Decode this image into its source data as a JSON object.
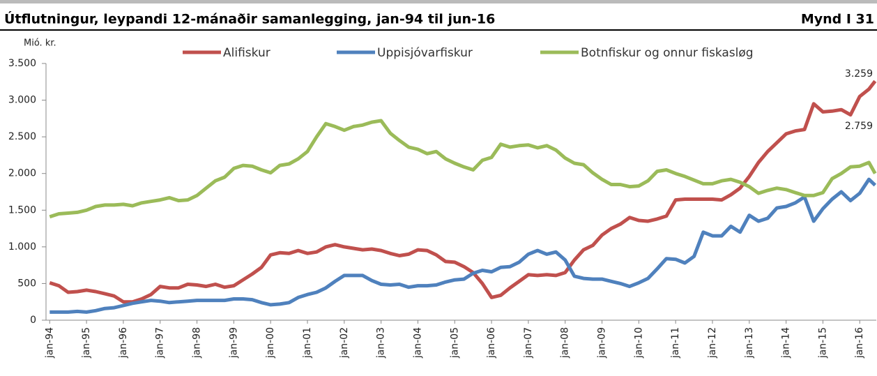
{
  "chart_data": {
    "type": "line",
    "title": "Útflutningur, leypandi 12-mánaðir samanlegging, jan-94 til jun-16",
    "figure_label": "Mynd I 31",
    "y_label": "Mió. kr.",
    "annotations": [
      "3.259",
      "2.759"
    ],
    "x": [
      1994,
      1994.25,
      1994.5,
      1994.75,
      1995,
      1995.25,
      1995.5,
      1995.75,
      1996,
      1996.25,
      1996.5,
      1996.75,
      1997,
      1997.25,
      1997.5,
      1997.75,
      1998,
      1998.25,
      1998.5,
      1998.75,
      1999,
      1999.25,
      1999.5,
      1999.75,
      2000,
      2000.25,
      2000.5,
      2000.75,
      2001,
      2001.25,
      2001.5,
      2001.75,
      2002,
      2002.25,
      2002.5,
      2002.75,
      2003,
      2003.25,
      2003.5,
      2003.75,
      2004,
      2004.25,
      2004.5,
      2004.75,
      2005,
      2005.25,
      2005.5,
      2005.75,
      2006,
      2006.25,
      2006.5,
      2006.75,
      2007,
      2007.25,
      2007.5,
      2007.75,
      2008,
      2008.25,
      2008.5,
      2008.75,
      2009,
      2009.25,
      2009.5,
      2009.75,
      2010,
      2010.25,
      2010.5,
      2010.75,
      2011,
      2011.25,
      2011.5,
      2011.75,
      2012,
      2012.25,
      2012.5,
      2012.75,
      2013,
      2013.25,
      2013.5,
      2013.75,
      2014,
      2014.25,
      2014.5,
      2014.75,
      2015,
      2015.25,
      2015.5,
      2015.75,
      2016,
      2016.25,
      2016.417
    ],
    "series": [
      {
        "name": "Alifiskur",
        "color": "#c0504d",
        "values": [
          510,
          470,
          380,
          390,
          410,
          390,
          360,
          330,
          250,
          250,
          290,
          350,
          460,
          440,
          440,
          490,
          480,
          460,
          490,
          450,
          470,
          550,
          630,
          720,
          890,
          920,
          910,
          950,
          910,
          930,
          1000,
          1030,
          1000,
          980,
          960,
          970,
          950,
          910,
          880,
          900,
          960,
          950,
          890,
          800,
          790,
          730,
          650,
          500,
          310,
          340,
          440,
          530,
          620,
          610,
          620,
          610,
          650,
          820,
          960,
          1020,
          1160,
          1250,
          1310,
          1400,
          1360,
          1350,
          1380,
          1420,
          1640,
          1650,
          1650,
          1650,
          1650,
          1640,
          1710,
          1800,
          1960,
          2150,
          2300,
          2420,
          2540,
          2580,
          2600,
          2950,
          2840,
          2850,
          2870,
          2800,
          3050,
          3150,
          3259
        ]
      },
      {
        "name": "Uppisjóvarfiskur",
        "color": "#4f81bd",
        "values": [
          110,
          110,
          110,
          120,
          110,
          130,
          160,
          170,
          200,
          230,
          250,
          270,
          260,
          240,
          250,
          260,
          270,
          270,
          270,
          270,
          290,
          290,
          280,
          240,
          210,
          220,
          240,
          310,
          350,
          380,
          440,
          530,
          610,
          610,
          610,
          540,
          490,
          480,
          490,
          450,
          470,
          470,
          480,
          520,
          550,
          560,
          640,
          680,
          660,
          720,
          730,
          790,
          900,
          950,
          900,
          930,
          820,
          600,
          570,
          560,
          560,
          530,
          500,
          460,
          510,
          570,
          700,
          840,
          830,
          780,
          870,
          1200,
          1150,
          1150,
          1280,
          1200,
          1430,
          1350,
          1390,
          1530,
          1550,
          1600,
          1680,
          1350,
          1520,
          1650,
          1750,
          1630,
          1730,
          1920,
          1840
        ]
      },
      {
        "name": "Botnfiskur og onnur fiskasløg",
        "color": "#9bbb59",
        "values": [
          1410,
          1450,
          1460,
          1470,
          1500,
          1550,
          1570,
          1570,
          1580,
          1560,
          1600,
          1620,
          1640,
          1670,
          1630,
          1640,
          1700,
          1800,
          1900,
          1950,
          2070,
          2110,
          2100,
          2050,
          2010,
          2110,
          2130,
          2200,
          2300,
          2500,
          2680,
          2640,
          2590,
          2640,
          2660,
          2700,
          2720,
          2550,
          2450,
          2360,
          2330,
          2270,
          2300,
          2200,
          2140,
          2090,
          2050,
          2180,
          2220,
          2400,
          2360,
          2380,
          2390,
          2350,
          2380,
          2320,
          2210,
          2140,
          2120,
          2010,
          1920,
          1850,
          1850,
          1820,
          1830,
          1900,
          2030,
          2050,
          2000,
          1960,
          1910,
          1860,
          1860,
          1900,
          1920,
          1880,
          1820,
          1730,
          1770,
          1800,
          1780,
          1740,
          1700,
          1700,
          1740,
          1930,
          2000,
          2090,
          2100,
          2150,
          2000
        ]
      }
    ],
    "xlim": [
      1993.9,
      2016.45
    ],
    "xticks": [
      {
        "value": 1994,
        "label": "jan-94"
      },
      {
        "value": 1995,
        "label": "jan-95"
      },
      {
        "value": 1996,
        "label": "jan-96"
      },
      {
        "value": 1997,
        "label": "jan-97"
      },
      {
        "value": 1998,
        "label": "jan-98"
      },
      {
        "value": 1999,
        "label": "jan-99"
      },
      {
        "value": 2000,
        "label": "jan-00"
      },
      {
        "value": 2001,
        "label": "jan-01"
      },
      {
        "value": 2002,
        "label": "jan-02"
      },
      {
        "value": 2003,
        "label": "jan-03"
      },
      {
        "value": 2004,
        "label": "jan-04"
      },
      {
        "value": 2005,
        "label": "jan-05"
      },
      {
        "value": 2006,
        "label": "jan-06"
      },
      {
        "value": 2007,
        "label": "jan-07"
      },
      {
        "value": 2008,
        "label": "jan-08"
      },
      {
        "value": 2009,
        "label": "jan-09"
      },
      {
        "value": 2010,
        "label": "jan-10"
      },
      {
        "value": 2011,
        "label": "jan-11"
      },
      {
        "value": 2012,
        "label": "jan-12"
      },
      {
        "value": 2013,
        "label": "jan-13"
      },
      {
        "value": 2014,
        "label": "jan-14"
      },
      {
        "value": 2015,
        "label": "jan-15"
      },
      {
        "value": 2016,
        "label": "jan-16"
      }
    ],
    "ylim": [
      0,
      3500
    ],
    "yticks": [
      0,
      500,
      {
        "value": 1000,
        "label": "1.000"
      },
      {
        "value": 1500,
        "label": "1.500"
      },
      {
        "value": 2000,
        "label": "2.000"
      },
      {
        "value": 2500,
        "label": "2.500"
      },
      {
        "value": 3000,
        "label": "3.000"
      },
      {
        "value": 3500,
        "label": "3.500"
      }
    ],
    "grid": false,
    "legend": "top"
  }
}
